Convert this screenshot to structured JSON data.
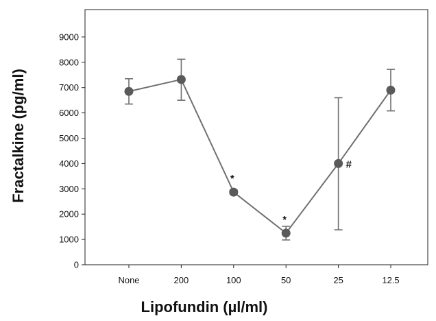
{
  "chart_data": {
    "type": "line",
    "title": "",
    "xlabel": "Lipofundin (µl/ml)",
    "ylabel": "Fractalkine (pg/ml)",
    "categories": [
      "None",
      "200",
      "100",
      "50",
      "25",
      "12.5"
    ],
    "y_ticks": [
      "0",
      "1000",
      "2000",
      "3000",
      "4000",
      "5000",
      "6000",
      "7000",
      "8000",
      "9000"
    ],
    "ylim": [
      0,
      10000
    ],
    "grid": false,
    "legend": "none",
    "series": [
      {
        "values": [
          6850,
          7320,
          2870,
          1250,
          4000,
          6900
        ],
        "error_upper": [
          7350,
          8120,
          2950,
          1520,
          6600,
          7720
        ],
        "error_lower": [
          6350,
          6500,
          2790,
          980,
          1380,
          6080
        ]
      }
    ],
    "annotations": [
      {
        "category": "100",
        "text": "*",
        "position": "above"
      },
      {
        "category": "50",
        "text": "*",
        "position": "above"
      },
      {
        "category": "25",
        "text": "#",
        "position": "right"
      }
    ],
    "colors": {
      "line": "#707070",
      "marker": "#5a5a5a",
      "axis": "#222222",
      "text": "#111111"
    }
  }
}
